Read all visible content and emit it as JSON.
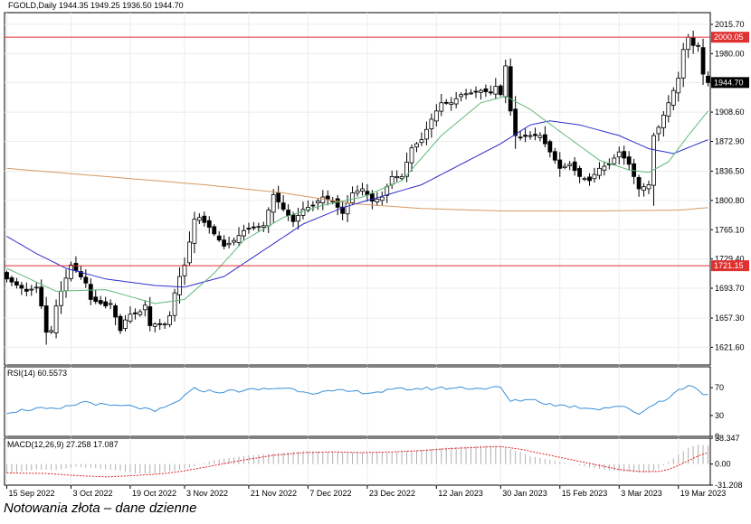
{
  "caption": "Notowania złota – dane dzienne",
  "colors": {
    "up_candle": "#ffffff",
    "down_candle": "#000000",
    "ma_short": "#5fb87a",
    "ma_mid": "#2e2ecc",
    "ma_long": "#d49a63",
    "hline": "#e03030",
    "rsi": "#3a8fd8",
    "macd_signal": "#e02020",
    "macd_hist": "#b0b0b0",
    "grid": "#ececec"
  },
  "chart_data": [
    {
      "type": "candlestick",
      "symbol_label": "FGOLD,Daily",
      "ohlc_header": "1944.35 1949.25 1936.50 1944.70",
      "ylim": [
        1600,
        2030
      ],
      "y_ticks": [
        "2015.70",
        "1980.00",
        "1944.70",
        "1908.60",
        "1872.90",
        "1836.50",
        "1800.80",
        "1765.10",
        "1729.40",
        "1693.70",
        "1657.30",
        "1621.60"
      ],
      "y_tick_values": [
        2015.7,
        1980.0,
        1944.7,
        1908.6,
        1872.9,
        1836.5,
        1800.8,
        1765.1,
        1729.4,
        1693.7,
        1657.3,
        1621.6
      ],
      "x_ticks": [
        "15 Sep 2022",
        "3 Oct 2022",
        "19 Oct 2022",
        "3 Nov 2022",
        "21 Nov 2022",
        "7 Dec 2022",
        "23 Dec 2022",
        "12 Jan 2023",
        "30 Jan 2023",
        "15 Feb 2023",
        "3 Mar 2023",
        "19 Mar 2023"
      ],
      "x_tick_index": [
        0,
        13,
        25,
        36,
        49,
        61,
        73,
        87,
        100,
        112,
        124,
        136
      ],
      "horizontal_levels": [
        {
          "value": 2000.05,
          "label": "2000.05"
        },
        {
          "value": 1721.15,
          "label": "1721.15"
        }
      ],
      "current_price": {
        "value": 1944.7,
        "label": "1944.70"
      },
      "close_anchors": [
        [
          0,
          1705
        ],
        [
          4,
          1690
        ],
        [
          6,
          1695
        ],
        [
          7,
          1672
        ],
        [
          8,
          1640
        ],
        [
          9,
          1642
        ],
        [
          10,
          1672
        ],
        [
          11,
          1690
        ],
        [
          13,
          1722
        ],
        [
          14,
          1715
        ],
        [
          16,
          1700
        ],
        [
          17,
          1680
        ],
        [
          19,
          1675
        ],
        [
          20,
          1672
        ],
        [
          21,
          1675
        ],
        [
          23,
          1642
        ],
        [
          24,
          1655
        ],
        [
          25,
          1662
        ],
        [
          27,
          1665
        ],
        [
          28,
          1673
        ],
        [
          29,
          1648
        ],
        [
          30,
          1650
        ],
        [
          32,
          1650
        ],
        [
          33,
          1660
        ],
        [
          34,
          1688
        ],
        [
          35,
          1708
        ],
        [
          36,
          1722
        ],
        [
          37,
          1750
        ],
        [
          38,
          1778
        ],
        [
          39,
          1780
        ],
        [
          41,
          1768
        ],
        [
          42,
          1760
        ],
        [
          44,
          1745
        ],
        [
          46,
          1752
        ],
        [
          48,
          1764
        ],
        [
          50,
          1768
        ],
        [
          52,
          1770
        ],
        [
          54,
          1808
        ],
        [
          56,
          1790
        ],
        [
          58,
          1775
        ],
        [
          60,
          1790
        ],
        [
          62,
          1795
        ],
        [
          64,
          1805
        ],
        [
          66,
          1800
        ],
        [
          68,
          1785
        ],
        [
          70,
          1810
        ],
        [
          72,
          1815
        ],
        [
          74,
          1800
        ],
        [
          76,
          1805
        ],
        [
          78,
          1830
        ],
        [
          80,
          1830
        ],
        [
          82,
          1865
        ],
        [
          84,
          1875
        ],
        [
          86,
          1900
        ],
        [
          88,
          1920
        ],
        [
          90,
          1920
        ],
        [
          92,
          1930
        ],
        [
          94,
          1932
        ],
        [
          96,
          1935
        ],
        [
          98,
          1932
        ],
        [
          99,
          1940
        ],
        [
          100,
          1930
        ],
        [
          101,
          1965
        ],
        [
          102,
          1910
        ],
        [
          103,
          1880
        ],
        [
          104,
          1878
        ],
        [
          106,
          1880
        ],
        [
          108,
          1880
        ],
        [
          110,
          1860
        ],
        [
          112,
          1840
        ],
        [
          114,
          1845
        ],
        [
          116,
          1830
        ],
        [
          118,
          1825
        ],
        [
          120,
          1840
        ],
        [
          122,
          1845
        ],
        [
          124,
          1860
        ],
        [
          126,
          1845
        ],
        [
          128,
          1815
        ],
        [
          130,
          1820
        ],
        [
          131,
          1880
        ],
        [
          132,
          1890
        ],
        [
          134,
          1920
        ],
        [
          136,
          1950
        ],
        [
          137,
          1985
        ],
        [
          138,
          2000
        ],
        [
          139,
          1990
        ],
        [
          140,
          1990
        ],
        [
          141,
          1955
        ],
        [
          142,
          1944.7
        ]
      ],
      "ma_short_anchors": [
        [
          0,
          1718
        ],
        [
          10,
          1690
        ],
        [
          20,
          1692
        ],
        [
          30,
          1675
        ],
        [
          36,
          1680
        ],
        [
          42,
          1712
        ],
        [
          48,
          1752
        ],
        [
          56,
          1780
        ],
        [
          64,
          1795
        ],
        [
          72,
          1805
        ],
        [
          80,
          1825
        ],
        [
          88,
          1880
        ],
        [
          96,
          1920
        ],
        [
          101,
          1928
        ],
        [
          106,
          1912
        ],
        [
          112,
          1885
        ],
        [
          120,
          1850
        ],
        [
          126,
          1838
        ],
        [
          130,
          1835
        ],
        [
          134,
          1848
        ],
        [
          138,
          1880
        ],
        [
          142,
          1910
        ]
      ],
      "ma_mid_anchors": [
        [
          0,
          1757
        ],
        [
          6,
          1736
        ],
        [
          12,
          1718
        ],
        [
          20,
          1705
        ],
        [
          30,
          1697
        ],
        [
          36,
          1695
        ],
        [
          44,
          1708
        ],
        [
          52,
          1740
        ],
        [
          60,
          1772
        ],
        [
          68,
          1792
        ],
        [
          76,
          1806
        ],
        [
          84,
          1820
        ],
        [
          92,
          1845
        ],
        [
          100,
          1870
        ],
        [
          106,
          1893
        ],
        [
          110,
          1898
        ],
        [
          116,
          1893
        ],
        [
          124,
          1880
        ],
        [
          130,
          1864
        ],
        [
          135,
          1858
        ],
        [
          142,
          1875
        ]
      ],
      "ma_long_anchors": [
        [
          0,
          1840
        ],
        [
          20,
          1830
        ],
        [
          40,
          1820
        ],
        [
          56,
          1810
        ],
        [
          70,
          1797
        ],
        [
          84,
          1791
        ],
        [
          100,
          1788
        ],
        [
          120,
          1788
        ],
        [
          136,
          1789
        ],
        [
          142,
          1792
        ]
      ]
    },
    {
      "type": "line",
      "title": "RSI(14) 60.5573",
      "ylim": [
        0,
        100
      ],
      "y_ticks": [
        "70",
        "30",
        "0"
      ],
      "y_tick_values": [
        70,
        30,
        0
      ],
      "anchors": [
        [
          0,
          35
        ],
        [
          6,
          40
        ],
        [
          10,
          38
        ],
        [
          16,
          50
        ],
        [
          20,
          44
        ],
        [
          26,
          43
        ],
        [
          30,
          35
        ],
        [
          34,
          48
        ],
        [
          38,
          68
        ],
        [
          42,
          64
        ],
        [
          48,
          66
        ],
        [
          56,
          70
        ],
        [
          62,
          63
        ],
        [
          68,
          65
        ],
        [
          74,
          63
        ],
        [
          80,
          68
        ],
        [
          86,
          69
        ],
        [
          92,
          70
        ],
        [
          96,
          69
        ],
        [
          100,
          70
        ],
        [
          102,
          50
        ],
        [
          106,
          54
        ],
        [
          110,
          46
        ],
        [
          116,
          42
        ],
        [
          120,
          40
        ],
        [
          124,
          44
        ],
        [
          128,
          33
        ],
        [
          132,
          50
        ],
        [
          134,
          56
        ],
        [
          136,
          66
        ],
        [
          138,
          73
        ],
        [
          140,
          68
        ],
        [
          141,
          62
        ],
        [
          142,
          60.6
        ]
      ]
    },
    {
      "type": "bar+line",
      "title": "MACD(12,26,9) 27.258 17.087",
      "ylim": [
        -31.208,
        38.347
      ],
      "y_ticks": [
        "38.347",
        "0.00",
        "-31.208"
      ],
      "y_tick_values": [
        38.347,
        0,
        -31.208
      ],
      "hist_anchors": [
        [
          0,
          -14
        ],
        [
          6,
          -8
        ],
        [
          10,
          -9
        ],
        [
          14,
          -4
        ],
        [
          18,
          -6
        ],
        [
          22,
          -9
        ],
        [
          26,
          -14
        ],
        [
          30,
          -14
        ],
        [
          34,
          -10
        ],
        [
          38,
          -3
        ],
        [
          42,
          6
        ],
        [
          48,
          12
        ],
        [
          54,
          16
        ],
        [
          60,
          19
        ],
        [
          66,
          18
        ],
        [
          72,
          17
        ],
        [
          78,
          17
        ],
        [
          84,
          21
        ],
        [
          90,
          25
        ],
        [
          96,
          27
        ],
        [
          100,
          27
        ],
        [
          103,
          20
        ],
        [
          106,
          12
        ],
        [
          110,
          6
        ],
        [
          114,
          1
        ],
        [
          118,
          -5
        ],
        [
          122,
          -9
        ],
        [
          126,
          -12
        ],
        [
          130,
          -13
        ],
        [
          132,
          -7
        ],
        [
          134,
          3
        ],
        [
          136,
          14
        ],
        [
          138,
          24
        ],
        [
          140,
          29
        ],
        [
          142,
          27.258
        ]
      ],
      "signal_anchors": [
        [
          0,
          -13
        ],
        [
          8,
          -14
        ],
        [
          14,
          -17
        ],
        [
          20,
          -19
        ],
        [
          26,
          -17
        ],
        [
          32,
          -14
        ],
        [
          36,
          -10
        ],
        [
          42,
          -2
        ],
        [
          48,
          6
        ],
        [
          54,
          13
        ],
        [
          60,
          17
        ],
        [
          66,
          18
        ],
        [
          72,
          17
        ],
        [
          78,
          18
        ],
        [
          84,
          20
        ],
        [
          90,
          23
        ],
        [
          96,
          25
        ],
        [
          100,
          26
        ],
        [
          104,
          22
        ],
        [
          108,
          16
        ],
        [
          112,
          10
        ],
        [
          116,
          4
        ],
        [
          120,
          -2
        ],
        [
          124,
          -8
        ],
        [
          128,
          -11
        ],
        [
          132,
          -11
        ],
        [
          134,
          -8
        ],
        [
          136,
          -2
        ],
        [
          138,
          5
        ],
        [
          140,
          12
        ],
        [
          142,
          17.087
        ]
      ]
    }
  ]
}
